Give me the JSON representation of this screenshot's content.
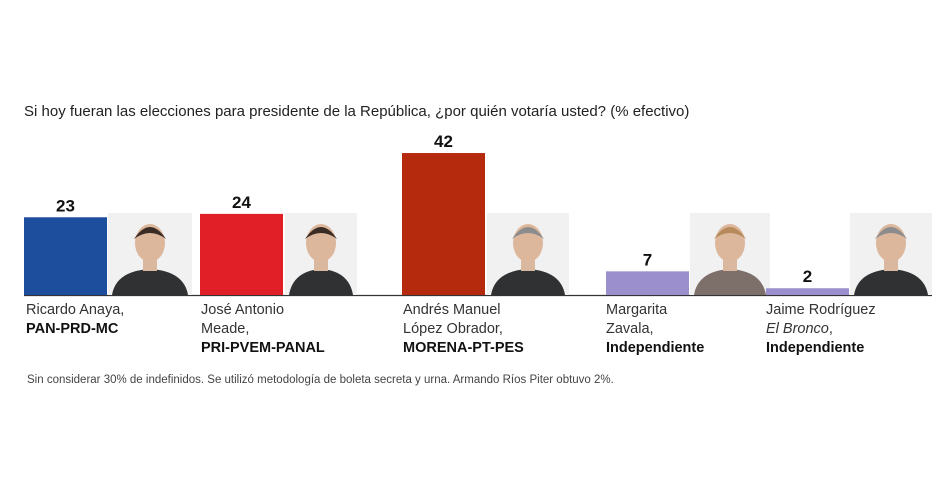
{
  "title": "Si hoy fueran las elecciones para presidente de la República, ¿por quién votaría usted? (% efectivo)",
  "footnote": "Sin considerar 30% de indefinidos. Se utilizó metodología de boleta secreta y urna. Armando Ríos Piter obtuvo 2%.",
  "candidates": [
    {
      "name_lines": [
        "Ricardo Anaya,"
      ],
      "party": "PAN-PRD-MC",
      "value": 23,
      "color": "#1d4e9e",
      "photo": "ricardo-anaya-photo"
    },
    {
      "name_lines": [
        "José Antonio",
        "Meade,"
      ],
      "party": "PRI-PVEM-PANAL",
      "value": 24,
      "color": "#e11f26",
      "photo": "jose-antonio-meade-photo"
    },
    {
      "name_lines": [
        "Andrés Manuel",
        "López Obrador,"
      ],
      "party": "MORENA-PT-PES",
      "value": 42,
      "color": "#b5290d",
      "photo": "andres-manuel-lopez-obrador-photo"
    },
    {
      "name_lines": [
        "Margarita",
        "Zavala,"
      ],
      "party": "Independiente",
      "value": 7,
      "color": "#9b8fce",
      "photo": "margarita-zavala-photo"
    },
    {
      "name_lines": [
        "Jaime Rodríguez"
      ],
      "alias": "El Bronco",
      "party": "Independiente",
      "value": 2,
      "color": "#9b8fce",
      "photo": "jaime-rodriguez-photo"
    }
  ],
  "chart_data": {
    "type": "bar",
    "categories": [
      "Ricardo Anaya",
      "José Antonio Meade",
      "Andrés Manuel López Obrador",
      "Margarita Zavala",
      "Jaime Rodríguez"
    ],
    "values": [
      23,
      24,
      42,
      7,
      2
    ],
    "title": "Si hoy fueran las elecciones para presidente de la República, ¿por quién votaría usted? (% efectivo)",
    "xlabel": "",
    "ylabel": "",
    "grid": false,
    "legend": "none"
  }
}
